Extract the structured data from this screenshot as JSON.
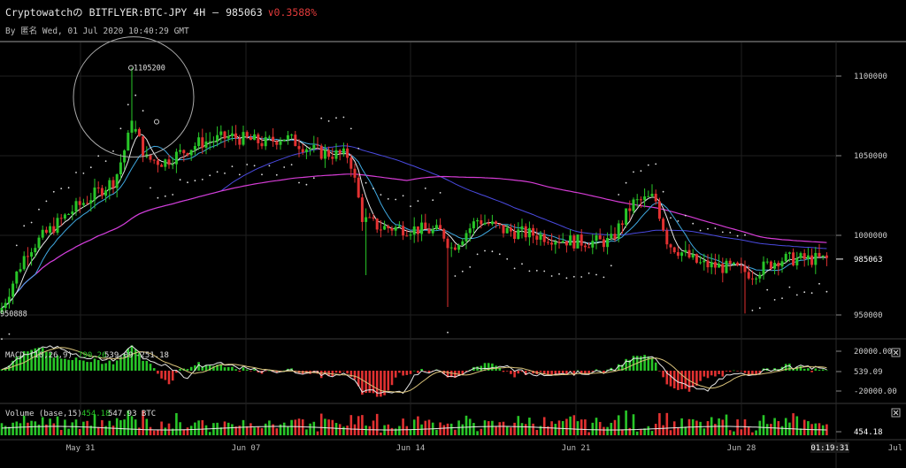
{
  "header": {
    "title": "Cryptowatchの BITFLYER:BTC-JPY 4H",
    "price": "985063",
    "change": "∨0.3588%",
    "byline": "By 匿名 Wed, 01 Jul 2020 10:40:29 GMT"
  },
  "chart_data": {
    "type": "candlestick",
    "price_axis": {
      "ticks": [
        "1100000",
        "1050000",
        "1000000",
        "950000"
      ],
      "ylim": [
        935000,
        1120000
      ]
    },
    "last_price_label": "985063",
    "high_label": "1105200",
    "low_label": "950888",
    "x_ticks": [
      "May 31",
      "Jun 07",
      "Jun 14",
      "Jun 21",
      "Jun 28",
      "01:19:31",
      "Jul"
    ],
    "colors": {
      "up": "#28c628",
      "down": "#e23131",
      "ma_fast": "#e8e8e8",
      "ma_mid": "#3fa8e0",
      "ma_slow": "#4a4ae0",
      "ma_long": "#d53cd5",
      "psar": "#e0e0e0"
    },
    "macd": {
      "label": "MACD (10,26,9)",
      "v1": "790.26",
      "v2": "539.09",
      "v3": "-251.18",
      "ticks": [
        "20000.00",
        "539.09",
        "-20000.00"
      ]
    },
    "volume": {
      "label": "Volume (base,15)",
      "v1": "454.18",
      "v2": "547.93 BTC",
      "tick": "454.18"
    }
  },
  "icons": {
    "close": "close-icon"
  }
}
